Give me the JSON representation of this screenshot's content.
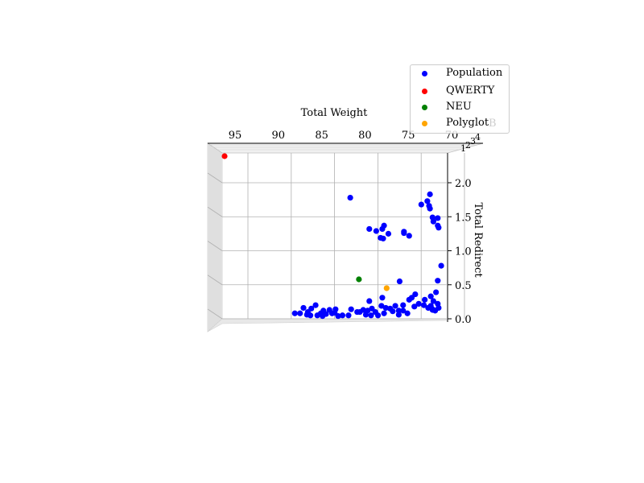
{
  "chart_data": {
    "type": "scatter",
    "projection": "3d",
    "title": "",
    "xlabel": "Total Weight",
    "ylabel": "",
    "zlabel": "Total Redirect",
    "xlim": [
      70,
      97
    ],
    "zlim": [
      0,
      2.2
    ],
    "x_ticks": [
      95,
      90,
      85,
      80,
      75,
      70
    ],
    "z_ticks": [
      0.0,
      0.5,
      1.0,
      1.5,
      2.0
    ],
    "partial_labels": {
      "depth_axis_label": "B",
      "depth_ticks": [
        "1",
        "2",
        "3",
        "4"
      ]
    },
    "grid": true,
    "legend_position": "top-right",
    "series": [
      {
        "name": "Population",
        "color": "#0000ff",
        "points": [
          [
            81.7,
            1.78
          ],
          [
            72.5,
            1.83
          ],
          [
            72.8,
            1.73
          ],
          [
            73.5,
            1.68
          ],
          [
            72.6,
            1.66
          ],
          [
            72.5,
            1.62
          ],
          [
            72.2,
            1.49
          ],
          [
            71.6,
            1.48
          ],
          [
            72.1,
            1.43
          ],
          [
            71.6,
            1.37
          ],
          [
            71.5,
            1.34
          ],
          [
            75.5,
            1.28
          ],
          [
            75.5,
            1.26
          ],
          [
            77.8,
            1.37
          ],
          [
            78.0,
            1.32
          ],
          [
            79.5,
            1.32
          ],
          [
            78.7,
            1.29
          ],
          [
            77.3,
            1.25
          ],
          [
            74.9,
            1.22
          ],
          [
            78.2,
            1.19
          ],
          [
            77.9,
            1.18
          ],
          [
            71.2,
            0.78
          ],
          [
            71.6,
            0.56
          ],
          [
            76.0,
            0.55
          ],
          [
            71.8,
            0.39
          ],
          [
            74.2,
            0.36
          ],
          [
            72.4,
            0.33
          ],
          [
            74.6,
            0.31
          ],
          [
            78.0,
            0.31
          ],
          [
            72.1,
            0.26
          ],
          [
            73.1,
            0.28
          ],
          [
            74.9,
            0.28
          ],
          [
            79.5,
            0.26
          ],
          [
            73.8,
            0.22
          ],
          [
            73.2,
            0.2
          ],
          [
            71.6,
            0.22
          ],
          [
            72.4,
            0.19
          ],
          [
            85.7,
            0.2
          ],
          [
            78.1,
            0.19
          ],
          [
            76.5,
            0.19
          ],
          [
            75.6,
            0.2
          ],
          [
            74.3,
            0.18
          ],
          [
            72.7,
            0.16
          ],
          [
            72.2,
            0.14
          ],
          [
            71.5,
            0.16
          ],
          [
            71.9,
            0.12
          ],
          [
            86.2,
            0.15
          ],
          [
            87.1,
            0.16
          ],
          [
            79.2,
            0.15
          ],
          [
            77.6,
            0.16
          ],
          [
            77.1,
            0.15
          ],
          [
            80.2,
            0.13
          ],
          [
            81.6,
            0.14
          ],
          [
            83.4,
            0.14
          ],
          [
            84.1,
            0.13
          ],
          [
            84.8,
            0.12
          ],
          [
            86.6,
            0.1
          ],
          [
            85.1,
            0.08
          ],
          [
            80.6,
            0.1
          ],
          [
            79.7,
            0.12
          ],
          [
            77.8,
            0.08
          ],
          [
            76.1,
            0.12
          ],
          [
            75.6,
            0.12
          ],
          [
            76.8,
            0.11
          ],
          [
            78.8,
            0.1
          ],
          [
            87.5,
            0.08
          ],
          [
            84.5,
            0.07
          ],
          [
            79.9,
            0.06
          ],
          [
            83.8,
            0.08
          ],
          [
            86.7,
            0.06
          ],
          [
            88.1,
            0.08
          ],
          [
            84.9,
            0.04
          ],
          [
            79.3,
            0.05
          ],
          [
            81.9,
            0.05
          ],
          [
            83.1,
            0.04
          ],
          [
            76.1,
            0.06
          ],
          [
            78.5,
            0.05
          ],
          [
            82.6,
            0.05
          ],
          [
            83.5,
            0.09
          ],
          [
            85.5,
            0.05
          ],
          [
            86.3,
            0.05
          ],
          [
            75.1,
            0.08
          ],
          [
            80.9,
            0.1
          ],
          [
            72.2,
            0.13
          ]
        ]
      },
      {
        "name": "QWERTY",
        "color": "#ff0000",
        "points": [
          [
            96.0,
            2.5
          ]
        ]
      },
      {
        "name": "NEU",
        "color": "#008000",
        "points": [
          [
            80.7,
            0.58
          ]
        ]
      },
      {
        "name": "Polyglot",
        "color": "#ffa500",
        "points": [
          [
            77.5,
            0.45
          ]
        ]
      }
    ]
  }
}
